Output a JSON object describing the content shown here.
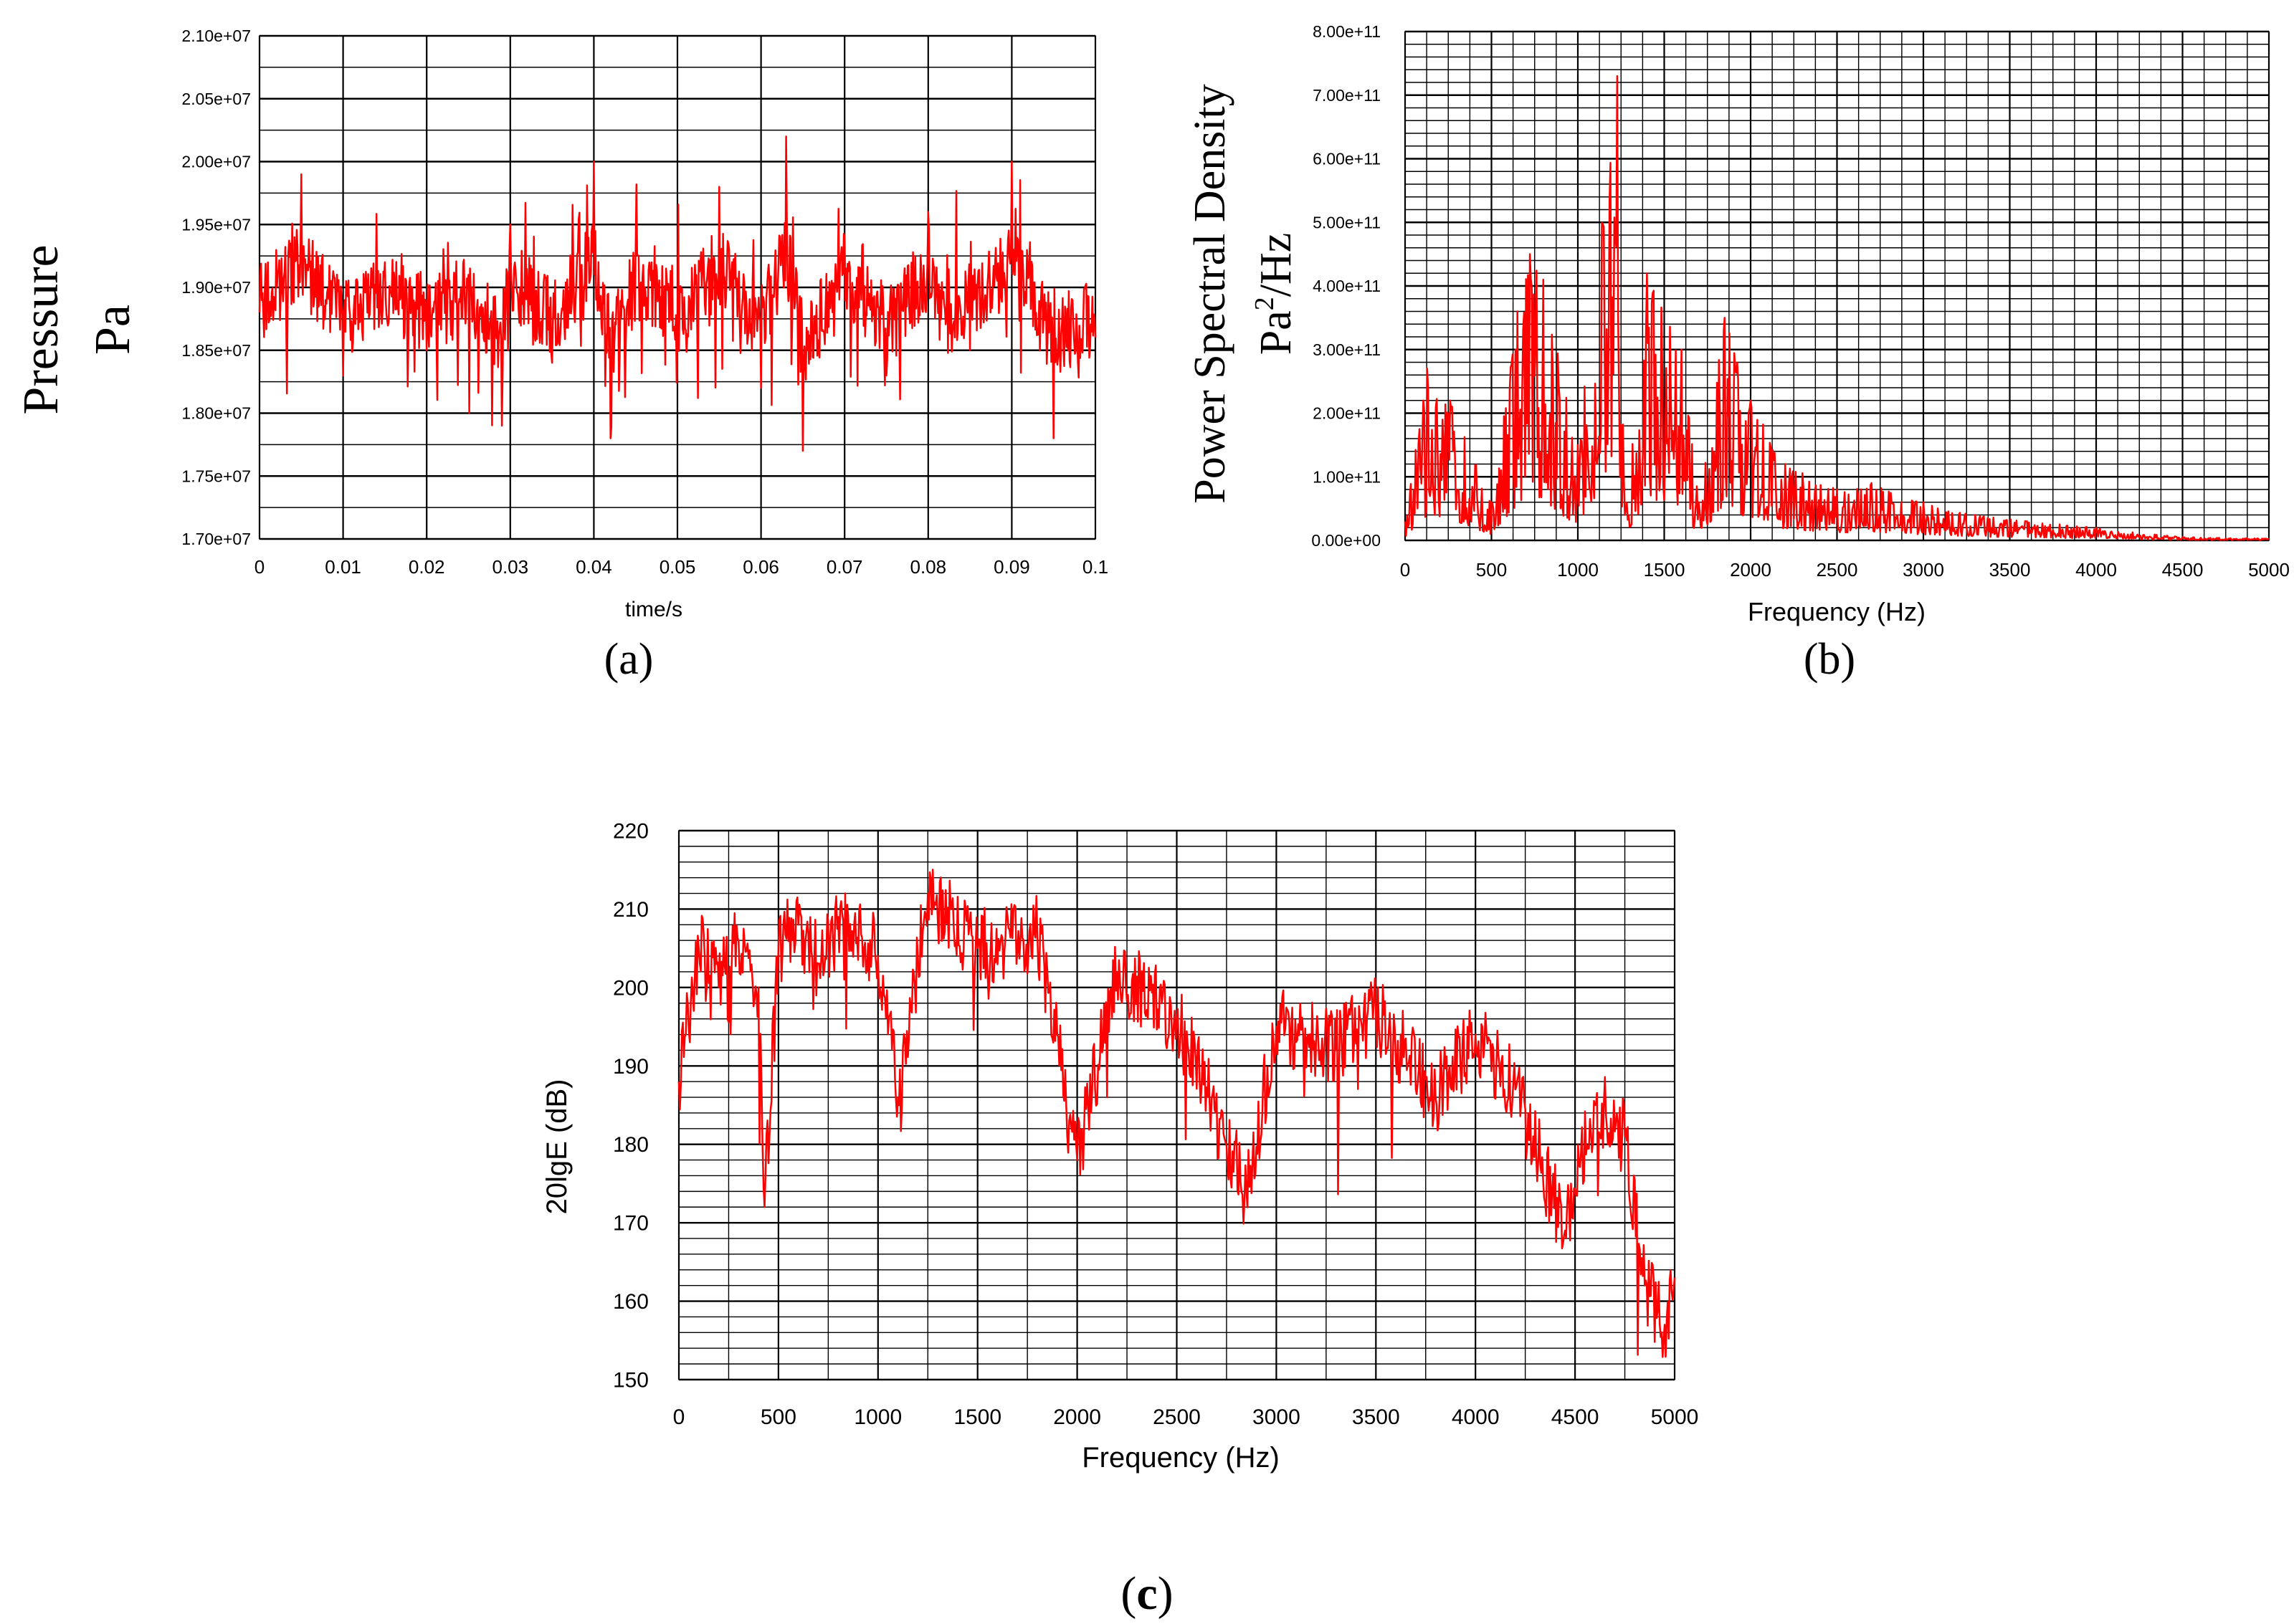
{
  "colors": {
    "series": "#ff0000",
    "grid": "#000000",
    "frame": "#808080"
  },
  "chart_data": [
    {
      "panel_label": "(a)",
      "type": "line",
      "title": "",
      "xlabel": "time/s",
      "ylabel_lines": [
        "Pressure",
        "Pa"
      ],
      "xlim": [
        0,
        0.1
      ],
      "ylim": [
        17000000,
        21000000
      ],
      "x_ticks": [
        "0",
        "0.01",
        "0.02",
        "0.03",
        "0.04",
        "0.05",
        "0.06",
        "0.07",
        "0.08",
        "0.09",
        "0.1"
      ],
      "y_ticks": [
        "1.70e+07",
        "1.75e+07",
        "1.80e+07",
        "1.85e+07",
        "1.90e+07",
        "1.95e+07",
        "2.00e+07",
        "2.05e+07",
        "2.10e+07"
      ],
      "series": [
        {
          "name": "pressure",
          "x": [
            0,
            0.005,
            0.01,
            0.015,
            0.02,
            0.025,
            0.029,
            0.03,
            0.035,
            0.04,
            0.042,
            0.045,
            0.05,
            0.055,
            0.06,
            0.063,
            0.065,
            0.07,
            0.075,
            0.08,
            0.085,
            0.09,
            0.095,
            0.1
          ],
          "values": [
            18800000,
            19900000,
            18300000,
            19200000,
            18500000,
            19100000,
            17900000,
            19500000,
            18400000,
            20000000,
            17800000,
            19300000,
            18600000,
            19800000,
            18200000,
            20200000,
            17700000,
            19400000,
            18300000,
            19600000,
            18500000,
            20000000,
            17800000,
            18600000
          ]
        }
      ]
    },
    {
      "panel_label": "(b)",
      "type": "line",
      "title": "",
      "xlabel": "Frequency (Hz)",
      "ylabel_lines": [
        "Power Spectral Density",
        "Pa2/Hz"
      ],
      "xlim": [
        0,
        5000
      ],
      "ylim": [
        0,
        800000000000
      ],
      "x_ticks": [
        "0",
        "500",
        "1000",
        "1500",
        "2000",
        "2500",
        "3000",
        "3500",
        "4000",
        "4500",
        "5000"
      ],
      "y_ticks": [
        "0.00e+00",
        "1.00e+11",
        "2.00e+11",
        "3.00e+11",
        "4.00e+11",
        "5.00e+11",
        "6.00e+11",
        "7.00e+11",
        "8.00e+11"
      ],
      "series": [
        {
          "name": "psd",
          "x": [
            0,
            130,
            260,
            500,
            650,
            720,
            800,
            1000,
            1230,
            1270,
            1400,
            1600,
            1700,
            1850,
            2000,
            2200,
            2500,
            2700,
            3000,
            3300,
            3600,
            4000,
            4500,
            5000
          ],
          "values": [
            30000000000,
            270000000000,
            220000000000,
            60000000000,
            360000000000,
            450000000000,
            410000000000,
            150000000000,
            730000000000,
            40000000000,
            420000000000,
            300000000000,
            60000000000,
            350000000000,
            220000000000,
            120000000000,
            80000000000,
            90000000000,
            60000000000,
            40000000000,
            30000000000,
            20000000000,
            5000000000,
            3000000000
          ]
        }
      ]
    },
    {
      "panel_label": "(c)",
      "type": "line",
      "title": "",
      "xlabel": "Frequency (Hz)",
      "ylabel": "20lgE (dB)",
      "xlim": [
        0,
        5000
      ],
      "ylim": [
        150,
        220
      ],
      "x_ticks": [
        "0",
        "500",
        "1000",
        "1500",
        "2000",
        "2500",
        "3000",
        "3500",
        "4000",
        "4500",
        "5000"
      ],
      "y_ticks": [
        "150",
        "160",
        "170",
        "180",
        "190",
        "200",
        "210",
        "220"
      ],
      "series": [
        {
          "name": "energy_db",
          "x": [
            0,
            100,
            200,
            300,
            400,
            430,
            500,
            600,
            700,
            800,
            1000,
            1100,
            1250,
            1500,
            1800,
            2000,
            2200,
            2500,
            2850,
            3000,
            3300,
            3500,
            3800,
            4000,
            4200,
            4450,
            4600,
            4750,
            4850,
            4950,
            5000
          ],
          "values": [
            188,
            205,
            200,
            206,
            200,
            172,
            205,
            208,
            203,
            209,
            204,
            186,
            212,
            205,
            207,
            178,
            202,
            196,
            174,
            195,
            192,
            197,
            186,
            194,
            187,
            169,
            185,
            181,
            162,
            157,
            163
          ]
        }
      ]
    }
  ]
}
